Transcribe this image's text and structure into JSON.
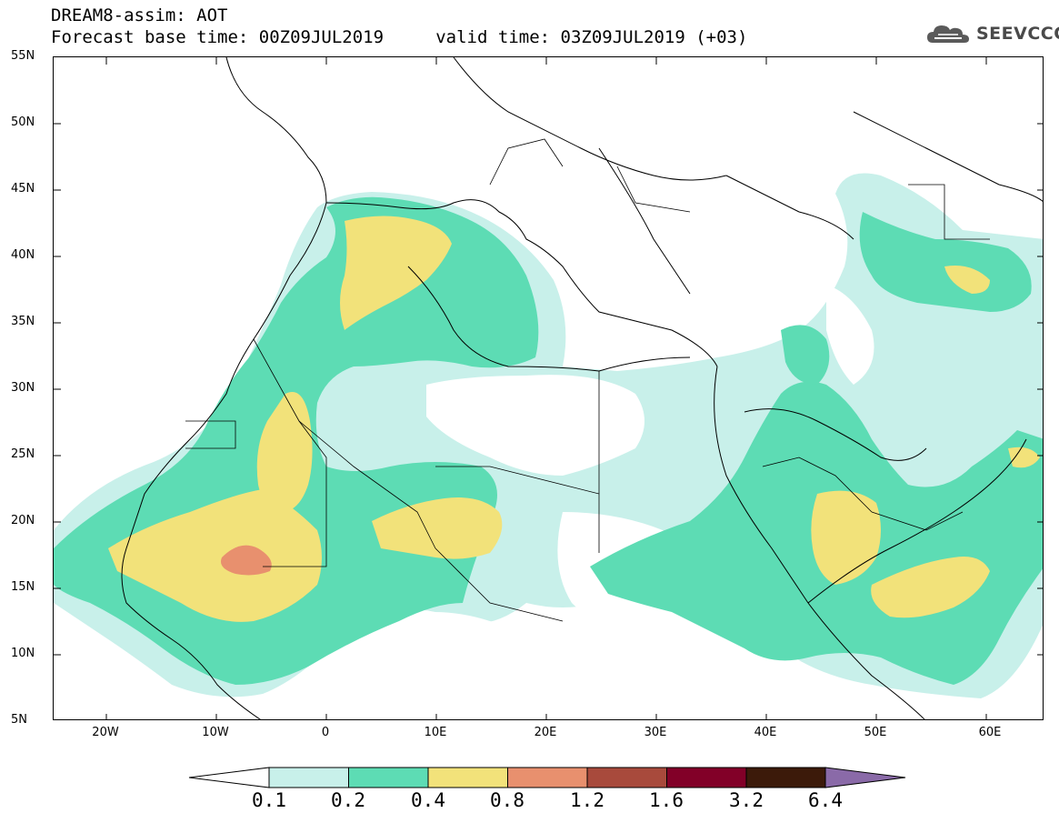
{
  "header": {
    "line1": "DREAM8-assim: AOT",
    "line2": "Forecast base time: 00Z09JUL2019     valid time: 03Z09JUL2019 (+03)"
  },
  "logo": {
    "text": "SEEVCCC",
    "icon": "cloud-logo-icon"
  },
  "map": {
    "variable": "AOT",
    "lon_range": [
      -25,
      65
    ],
    "lat_range": [
      5,
      55
    ],
    "lat_labels": [
      "55N",
      "50N",
      "45N",
      "40N",
      "35N",
      "30N",
      "25N",
      "20N",
      "15N",
      "10N",
      "5N"
    ],
    "lon_labels": [
      "20W",
      "10W",
      "0",
      "10E",
      "20E",
      "30E",
      "40E",
      "50E",
      "60E"
    ]
  },
  "colorbar": {
    "labels": [
      "0.1",
      "0.2",
      "0.4",
      "0.8",
      "1.2",
      "1.6",
      "3.2",
      "6.4"
    ],
    "colors": [
      "#c8f0ea",
      "#5ddcb4",
      "#f2e27a",
      "#e8906e",
      "#a84a3c",
      "#820028",
      "#3c1a0a",
      "#8a6aa8"
    ],
    "under_color": "#ffffff"
  }
}
